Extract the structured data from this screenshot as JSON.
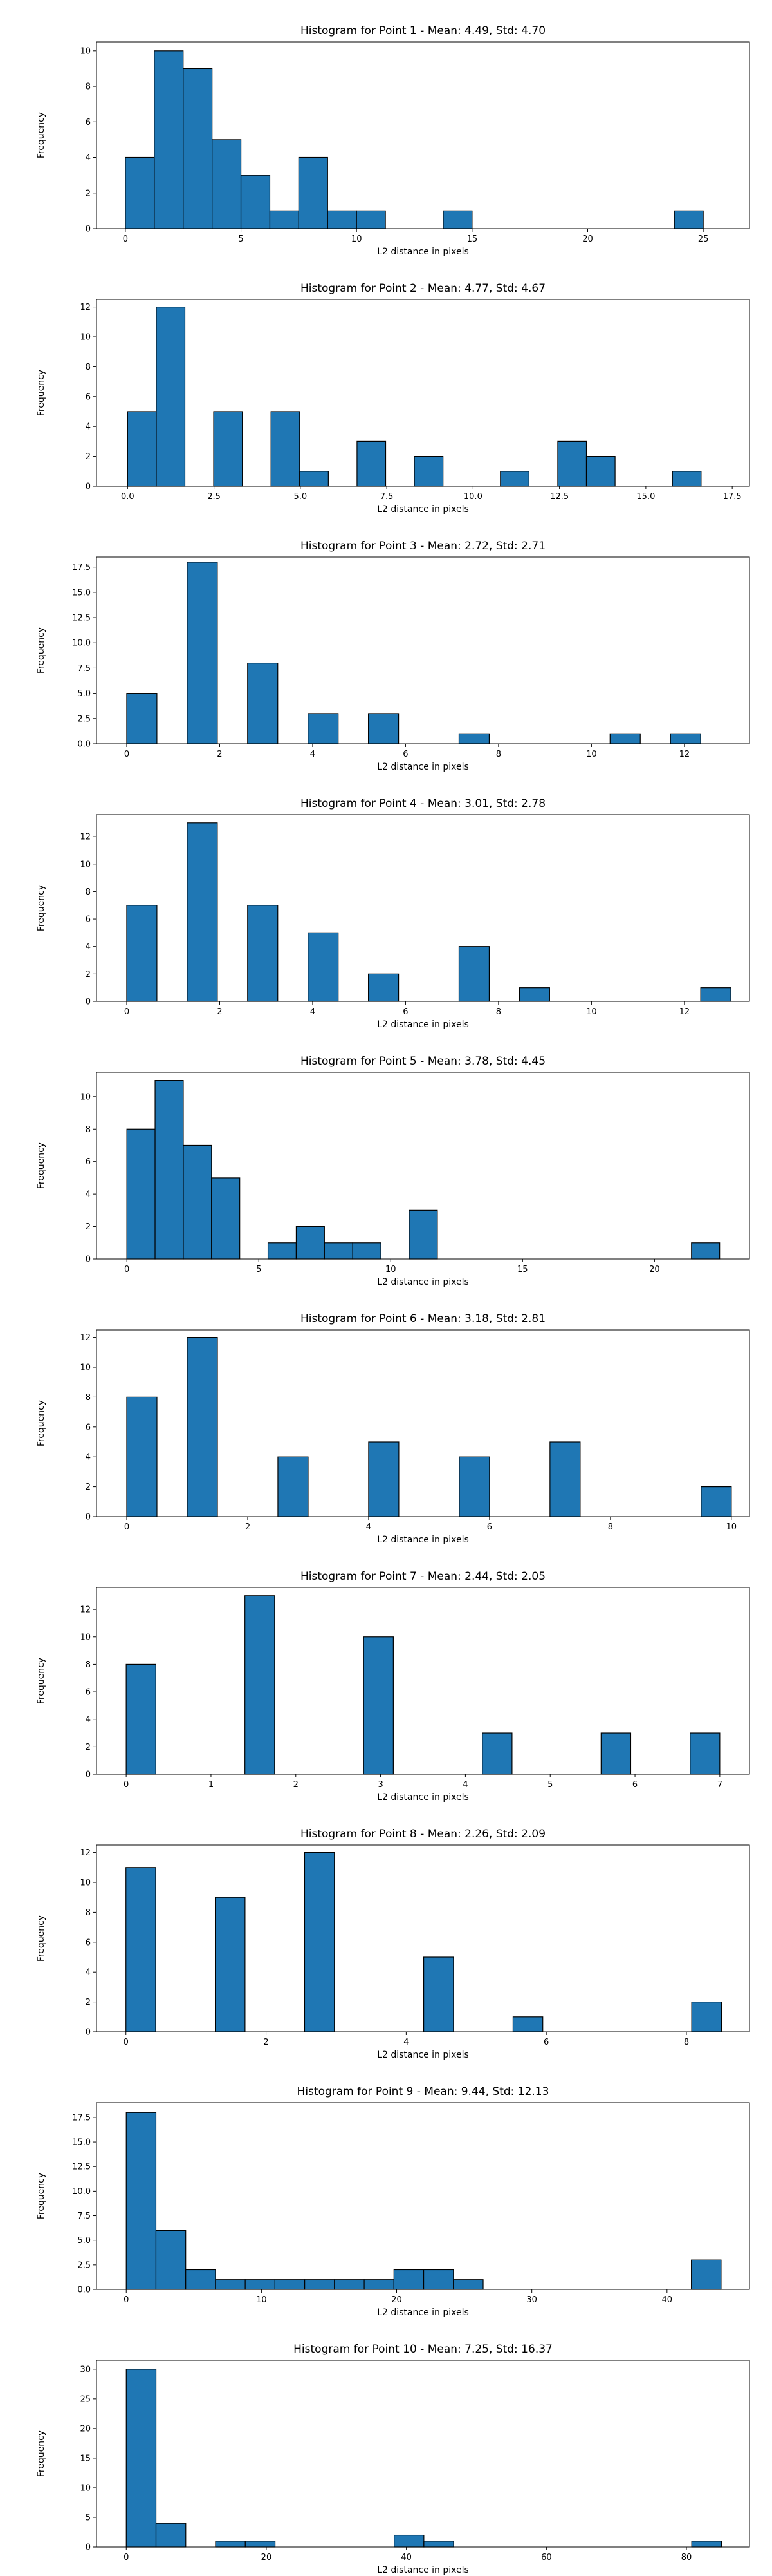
{
  "chart_data": [
    {
      "type": "bar",
      "title": "Histogram for Point 1 - Mean: 4.49, Std: 4.70",
      "xlabel": "L2 distance in pixels",
      "ylabel": "Frequency",
      "xlim": [
        -1.25,
        27.0
      ],
      "ylim": [
        0,
        10.5
      ],
      "xticks": [
        0,
        5,
        10,
        15,
        20,
        25
      ],
      "xtick_labels": [
        "0",
        "5",
        "10",
        "15",
        "20",
        "25"
      ],
      "yticks": [
        0,
        2,
        4,
        6,
        8,
        10
      ],
      "ytick_labels": [
        "0",
        "2",
        "4",
        "6",
        "8",
        "10"
      ],
      "bin_width": 1.25,
      "bin_starts": [
        0,
        1.25,
        2.5,
        3.75,
        5.0,
        6.25,
        7.5,
        8.75,
        10.0,
        13.75,
        23.75
      ],
      "values": [
        4,
        10,
        9,
        5,
        3,
        1,
        4,
        1,
        1,
        1,
        1
      ]
    },
    {
      "type": "bar",
      "title": "Histogram for Point 2 - Mean: 4.77, Std: 4.67",
      "xlabel": "L2 distance in pixels",
      "ylabel": "Frequency",
      "xlim": [
        -0.9,
        18.0
      ],
      "ylim": [
        0,
        12.5
      ],
      "xticks": [
        0,
        2.5,
        5,
        7.5,
        10,
        12.5,
        15,
        17.5
      ],
      "xtick_labels": [
        "0.0",
        "2.5",
        "5.0",
        "7.5",
        "10.0",
        "12.5",
        "15.0",
        "17.5"
      ],
      "yticks": [
        0,
        2,
        4,
        6,
        8,
        10,
        12
      ],
      "ytick_labels": [
        "0",
        "2",
        "4",
        "6",
        "8",
        "10",
        "12"
      ],
      "bin_width": 0.83,
      "bin_starts": [
        0,
        0.83,
        2.49,
        4.15,
        4.98,
        6.64,
        8.3,
        10.79,
        12.45,
        13.28,
        15.77
      ],
      "values": [
        5,
        12,
        5,
        5,
        1,
        3,
        2,
        1,
        3,
        2,
        1
      ]
    },
    {
      "type": "bar",
      "title": "Histogram for Point 3 - Mean: 2.72, Std: 2.71",
      "xlabel": "L2 distance in pixels",
      "ylabel": "Frequency",
      "xlim": [
        -0.65,
        13.4
      ],
      "ylim": [
        0,
        18.5
      ],
      "xticks": [
        0,
        2,
        4,
        6,
        8,
        10,
        12
      ],
      "xtick_labels": [
        "0",
        "2",
        "4",
        "6",
        "8",
        "10",
        "12"
      ],
      "yticks": [
        0,
        2.5,
        5,
        7.5,
        10,
        12.5,
        15,
        17.5
      ],
      "ytick_labels": [
        "0.0",
        "2.5",
        "5.0",
        "7.5",
        "10.0",
        "12.5",
        "15.0",
        "17.5"
      ],
      "bin_width": 0.65,
      "bin_starts": [
        0,
        1.3,
        2.6,
        3.9,
        5.2,
        7.15,
        10.4,
        11.7
      ],
      "values": [
        5,
        18,
        8,
        3,
        3,
        1,
        1,
        1
      ]
    },
    {
      "type": "bar",
      "title": "Histogram for Point 4 - Mean: 3.01, Std: 2.78",
      "xlabel": "L2 distance in pixels",
      "ylabel": "Frequency",
      "xlim": [
        -0.65,
        13.4
      ],
      "ylim": [
        0,
        13.6
      ],
      "xticks": [
        0,
        2,
        4,
        6,
        8,
        10,
        12
      ],
      "xtick_labels": [
        "0",
        "2",
        "4",
        "6",
        "8",
        "10",
        "12"
      ],
      "yticks": [
        0,
        2,
        4,
        6,
        8,
        10,
        12
      ],
      "ytick_labels": [
        "0",
        "2",
        "4",
        "6",
        "8",
        "10",
        "12"
      ],
      "bin_width": 0.65,
      "bin_starts": [
        0,
        1.3,
        2.6,
        3.9,
        5.2,
        7.15,
        8.45,
        12.35
      ],
      "values": [
        7,
        13,
        7,
        5,
        2,
        4,
        1,
        1
      ]
    },
    {
      "type": "bar",
      "title": "Histogram for Point 5 - Mean: 3.78, Std: 4.45",
      "xlabel": "L2 distance in pixels",
      "ylabel": "Frequency",
      "xlim": [
        -1.15,
        23.6
      ],
      "ylim": [
        0,
        11.5
      ],
      "xticks": [
        0,
        5,
        10,
        15,
        20
      ],
      "xtick_labels": [
        "0",
        "5",
        "10",
        "15",
        "20"
      ],
      "yticks": [
        0,
        2,
        4,
        6,
        8,
        10
      ],
      "ytick_labels": [
        "0",
        "2",
        "4",
        "6",
        "8",
        "10"
      ],
      "bin_width": 1.07,
      "bin_starts": [
        0,
        1.07,
        2.14,
        3.21,
        5.35,
        6.42,
        7.49,
        8.56,
        10.7,
        21.4
      ],
      "values": [
        8,
        11,
        7,
        5,
        1,
        2,
        1,
        1,
        3,
        1
      ]
    },
    {
      "type": "bar",
      "title": "Histogram for Point 6 - Mean: 3.18, Std: 2.81",
      "xlabel": "L2 distance in pixels",
      "ylabel": "Frequency",
      "xlim": [
        -0.5,
        10.3
      ],
      "ylim": [
        0,
        12.5
      ],
      "xticks": [
        0,
        2,
        4,
        6,
        8,
        10
      ],
      "xtick_labels": [
        "0",
        "2",
        "4",
        "6",
        "8",
        "10"
      ],
      "yticks": [
        0,
        2,
        4,
        6,
        8,
        10,
        12
      ],
      "ytick_labels": [
        "0",
        "2",
        "4",
        "6",
        "8",
        "10",
        "12"
      ],
      "bin_width": 0.5,
      "bin_starts": [
        0,
        1.0,
        2.5,
        4.0,
        5.5,
        7.0,
        9.5
      ],
      "values": [
        8,
        12,
        4,
        5,
        4,
        5,
        2
      ]
    },
    {
      "type": "bar",
      "title": "Histogram for Point 7 - Mean: 2.44, Std: 2.05",
      "xlabel": "L2 distance in pixels",
      "ylabel": "Frequency",
      "xlim": [
        -0.35,
        7.35
      ],
      "ylim": [
        0,
        13.6
      ],
      "xticks": [
        0,
        1,
        2,
        3,
        4,
        5,
        6,
        7
      ],
      "xtick_labels": [
        "0",
        "1",
        "2",
        "3",
        "4",
        "5",
        "6",
        "7"
      ],
      "yticks": [
        0,
        2,
        4,
        6,
        8,
        10,
        12
      ],
      "ytick_labels": [
        "0",
        "2",
        "4",
        "6",
        "8",
        "10",
        "12"
      ],
      "bin_width": 0.35,
      "bin_starts": [
        0,
        1.4,
        2.8,
        4.2,
        5.6,
        6.65
      ],
      "values": [
        8,
        13,
        10,
        3,
        3,
        3
      ]
    },
    {
      "type": "bar",
      "title": "Histogram for Point 8 - Mean: 2.26, Std: 2.09",
      "xlabel": "L2 distance in pixels",
      "ylabel": "Frequency",
      "xlim": [
        -0.42,
        8.9
      ],
      "ylim": [
        0,
        12.5
      ],
      "xticks": [
        0,
        2,
        4,
        6,
        8
      ],
      "xtick_labels": [
        "0",
        "2",
        "4",
        "6",
        "8"
      ],
      "yticks": [
        0,
        2,
        4,
        6,
        8,
        10,
        12
      ],
      "ytick_labels": [
        "0",
        "2",
        "4",
        "6",
        "8",
        "10",
        "12"
      ],
      "bin_width": 0.425,
      "bin_starts": [
        0,
        1.275,
        2.55,
        4.25,
        5.525,
        8.075
      ],
      "values": [
        11,
        9,
        12,
        5,
        1,
        2
      ]
    },
    {
      "type": "bar",
      "title": "Histogram for Point 9 - Mean: 9.44, Std: 12.13",
      "xlabel": "L2 distance in pixels",
      "ylabel": "Frequency",
      "xlim": [
        -2.2,
        46.1
      ],
      "ylim": [
        0,
        19.0
      ],
      "xticks": [
        0,
        10,
        20,
        30,
        40
      ],
      "xtick_labels": [
        "0",
        "10",
        "20",
        "30",
        "40"
      ],
      "yticks": [
        0,
        2.5,
        5,
        7.5,
        10,
        12.5,
        15,
        17.5
      ],
      "ytick_labels": [
        "0.0",
        "2.5",
        "5.0",
        "7.5",
        "10.0",
        "12.5",
        "15.0",
        "17.5"
      ],
      "bin_width": 2.2,
      "bin_starts": [
        0,
        2.2,
        4.4,
        6.6,
        8.8,
        11.0,
        13.2,
        15.4,
        17.6,
        19.8,
        22.0,
        24.2,
        41.8
      ],
      "values": [
        18,
        6,
        2,
        1,
        1,
        1,
        1,
        1,
        1,
        2,
        2,
        1,
        3
      ]
    },
    {
      "type": "bar",
      "title": "Histogram for Point 10 - Mean: 7.25, Std: 16.37",
      "xlabel": "L2 distance in pixels",
      "ylabel": "Frequency",
      "xlim": [
        -4.25,
        89.0
      ],
      "ylim": [
        0,
        31.5
      ],
      "xticks": [
        0,
        20,
        40,
        60,
        80
      ],
      "xtick_labels": [
        "0",
        "20",
        "40",
        "60",
        "80"
      ],
      "yticks": [
        0,
        5,
        10,
        15,
        20,
        25,
        30
      ],
      "ytick_labels": [
        "0",
        "5",
        "10",
        "15",
        "20",
        "25",
        "30"
      ],
      "bin_width": 4.25,
      "bin_starts": [
        0,
        4.25,
        12.75,
        17.0,
        38.25,
        42.5,
        80.75
      ],
      "values": [
        30,
        4,
        1,
        1,
        2,
        1,
        1
      ]
    }
  ]
}
